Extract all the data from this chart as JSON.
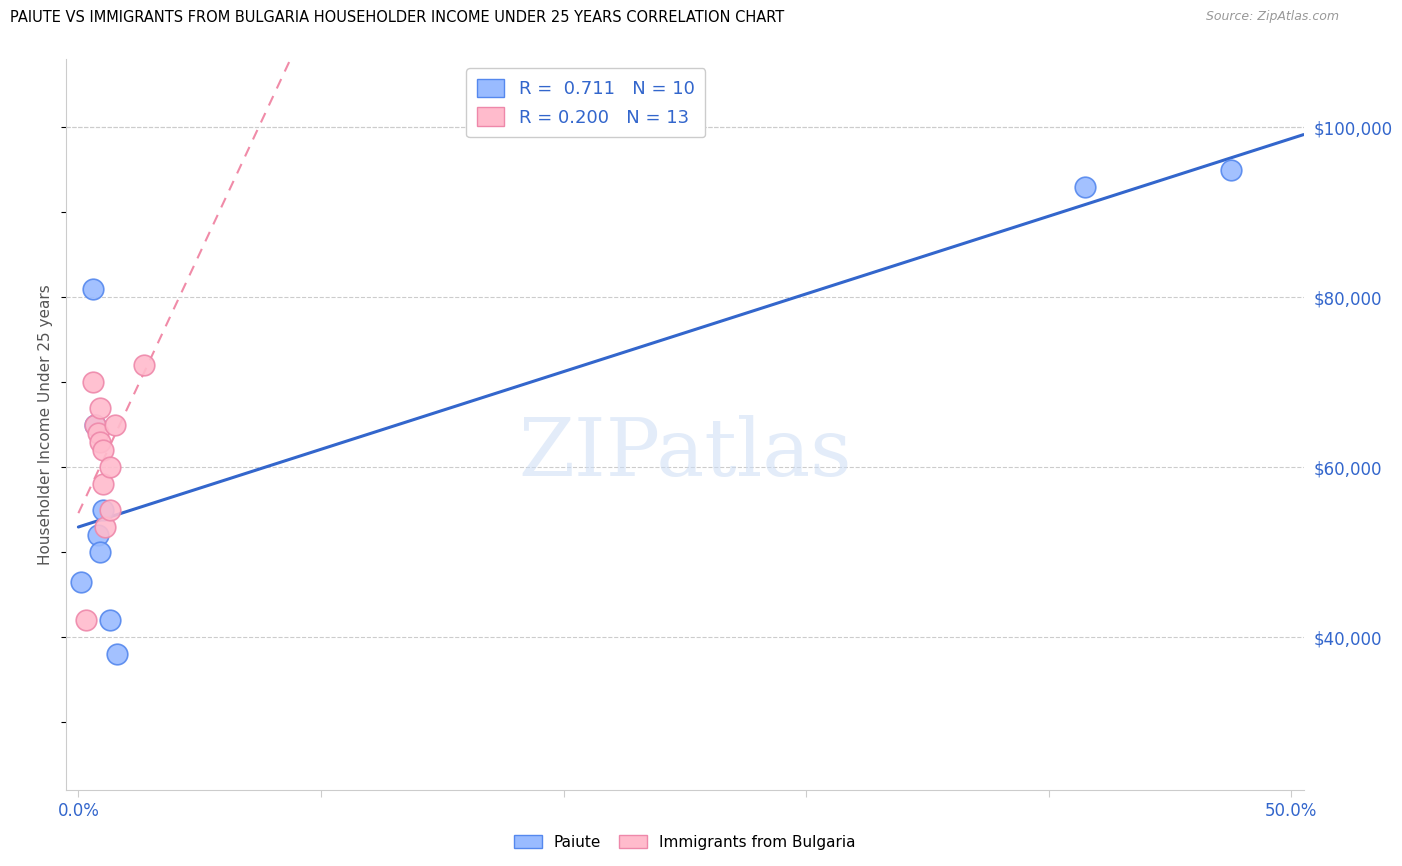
{
  "title": "PAIUTE VS IMMIGRANTS FROM BULGARIA HOUSEHOLDER INCOME UNDER 25 YEARS CORRELATION CHART",
  "source": "Source: ZipAtlas.com",
  "ylabel": "Householder Income Under 25 years",
  "xlim": [
    -0.005,
    0.505
  ],
  "ylim": [
    22000,
    108000
  ],
  "xticks": [
    0.0,
    0.1,
    0.2,
    0.3,
    0.4,
    0.5
  ],
  "xtick_labels": [
    "0.0%",
    "",
    "",
    "",
    "",
    "50.0%"
  ],
  "ytick_labels_right": [
    "$40,000",
    "$60,000",
    "$80,000",
    "$100,000"
  ],
  "ytick_vals_right": [
    40000,
    60000,
    80000,
    100000
  ],
  "paiute_x": [
    0.001,
    0.006,
    0.007,
    0.008,
    0.009,
    0.01,
    0.013,
    0.016,
    0.415,
    0.475
  ],
  "paiute_y": [
    46500,
    81000,
    65000,
    52000,
    50000,
    55000,
    42000,
    38000,
    93000,
    95000
  ],
  "bulgaria_x": [
    0.003,
    0.006,
    0.007,
    0.008,
    0.009,
    0.009,
    0.01,
    0.01,
    0.011,
    0.013,
    0.013,
    0.015,
    0.027
  ],
  "bulgaria_y": [
    42000,
    70000,
    65000,
    64000,
    63000,
    67000,
    62000,
    58000,
    53000,
    55000,
    60000,
    65000,
    72000
  ],
  "paiute_color": "#5588ee",
  "paiute_fill": "#99bbff",
  "bulgaria_color": "#ee88aa",
  "bulgaria_fill": "#ffbbcc",
  "regression_blue_color": "#3366cc",
  "regression_pink_color": "#ee7799",
  "R_paiute": 0.711,
  "N_paiute": 10,
  "R_bulgaria": 0.2,
  "N_bulgaria": 13,
  "watermark": "ZIPatlas",
  "legend_labels": [
    "Paiute",
    "Immigrants from Bulgaria"
  ]
}
